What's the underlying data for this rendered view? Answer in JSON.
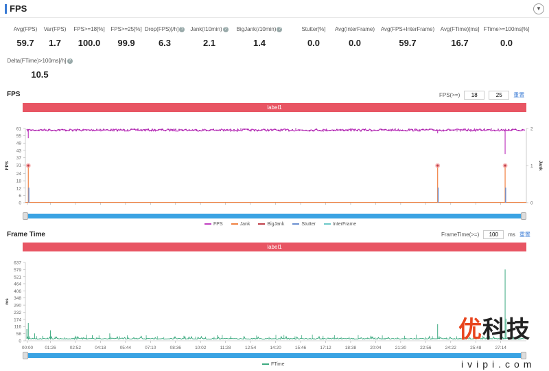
{
  "header": {
    "title": "FPS",
    "collapse_icon": "chevron-down-icon"
  },
  "metrics": [
    {
      "label": "Avg(FPS)",
      "value": "59.7",
      "help": false
    },
    {
      "label": "Var(FPS)",
      "value": "1.7",
      "help": false
    },
    {
      "label": "FPS>=18[%]",
      "value": "100.0",
      "help": false
    },
    {
      "label": "FPS>=25[%]",
      "value": "99.9",
      "help": false
    },
    {
      "label": "Drop(FPS)[/h]",
      "value": "6.3",
      "help": true
    },
    {
      "label": "Jank(/10min)",
      "value": "2.1",
      "help": true
    },
    {
      "label": "BigJank(/10min)",
      "value": "1.4",
      "help": true
    },
    {
      "label": "Stutter[%]",
      "value": "0.0",
      "help": false
    },
    {
      "label": "Avg(InterFrame)",
      "value": "0.0",
      "help": false
    },
    {
      "label": "Avg(FPS+InterFrame)",
      "value": "59.7",
      "help": false
    },
    {
      "label": "Avg(FTime)[ms]",
      "value": "16.7",
      "help": false
    },
    {
      "label": "FTime>=100ms[%]",
      "value": "0.0",
      "help": false
    },
    {
      "label": "Delta(FTime)>100ms[/h]",
      "value": "10.5",
      "help": true
    }
  ],
  "fps_section": {
    "title": "FPS",
    "threshold_label": "FPS(>=)",
    "threshold1": "18",
    "threshold2": "25",
    "reset": "重置",
    "label_bar": "label1"
  },
  "frametime_section": {
    "title": "Frame Time",
    "threshold_label": "FrameTime(>=)",
    "threshold": "100",
    "unit": "ms",
    "reset": "重置",
    "label_bar": "label1"
  },
  "watermark": {
    "brand": "优科技",
    "site": "ivipi.com"
  },
  "chart_data": [
    {
      "type": "line",
      "title": "FPS",
      "ylabel": "FPS",
      "y2label": "Jank",
      "yticks": [
        "0",
        "6",
        "12",
        "18",
        "24",
        "31",
        "37",
        "43",
        "49",
        "55",
        "61"
      ],
      "ylim": [
        0,
        61
      ],
      "y2ticks": [
        "0",
        "1",
        "2"
      ],
      "y2lim": [
        0,
        2
      ],
      "xticks": [
        "00:00",
        "01:26",
        "02:52",
        "04:18",
        "05:44",
        "07:10",
        "08:36",
        "10:02",
        "11:28",
        "12:54",
        "14:20",
        "15:46",
        "17:12",
        "18:38",
        "20:04",
        "21:30",
        "22:56",
        "24:22",
        "25:48",
        "27:14"
      ],
      "xlim_seconds": [
        0,
        1722
      ],
      "legend": [
        "FPS",
        "Jank",
        "BigJank",
        "Stutter",
        "InterFrame"
      ],
      "colors": {
        "FPS": "#c03ec0",
        "Jank": "#f08040",
        "BigJank": "#c0404a",
        "Stutter": "#6a8fd0",
        "InterFrame": "#6cc8c8"
      },
      "fps_baseline": 59.7,
      "fps_dips": [
        {
          "t": 10,
          "fps": 53
        },
        {
          "t": 1417,
          "fps": 57
        },
        {
          "t": 1649,
          "fps": 40
        }
      ],
      "jank_events": [
        {
          "t": 10,
          "jank": 1
        },
        {
          "t": 1417,
          "jank": 1
        },
        {
          "t": 1649,
          "jank": 1
        }
      ]
    },
    {
      "type": "line",
      "title": "Frame Time",
      "ylabel": "ms",
      "yticks": [
        "0",
        "58",
        "116",
        "174",
        "232",
        "290",
        "348",
        "406",
        "464",
        "521",
        "579",
        "637"
      ],
      "ylim": [
        0,
        637
      ],
      "xticks": [
        "00:00",
        "01:26",
        "02:52",
        "04:18",
        "05:44",
        "07:10",
        "08:36",
        "10:02",
        "11:28",
        "12:54",
        "14:20",
        "15:46",
        "17:12",
        "18:38",
        "20:04",
        "21:30",
        "22:56",
        "24:22",
        "25:48",
        "27:14"
      ],
      "xlim_seconds": [
        0,
        1722
      ],
      "legend": [
        "FTime"
      ],
      "colors": {
        "FTime": "#3daa80"
      },
      "baseline_ms": 16.7,
      "spikes": [
        {
          "t": 5,
          "ms": 95
        },
        {
          "t": 10,
          "ms": 145
        },
        {
          "t": 32,
          "ms": 60
        },
        {
          "t": 60,
          "ms": 40
        },
        {
          "t": 86,
          "ms": 85
        },
        {
          "t": 230,
          "ms": 45
        },
        {
          "t": 290,
          "ms": 60
        },
        {
          "t": 660,
          "ms": 45
        },
        {
          "t": 1417,
          "ms": 135
        },
        {
          "t": 1649,
          "ms": 580
        },
        {
          "t": 1652,
          "ms": 180
        }
      ]
    }
  ]
}
